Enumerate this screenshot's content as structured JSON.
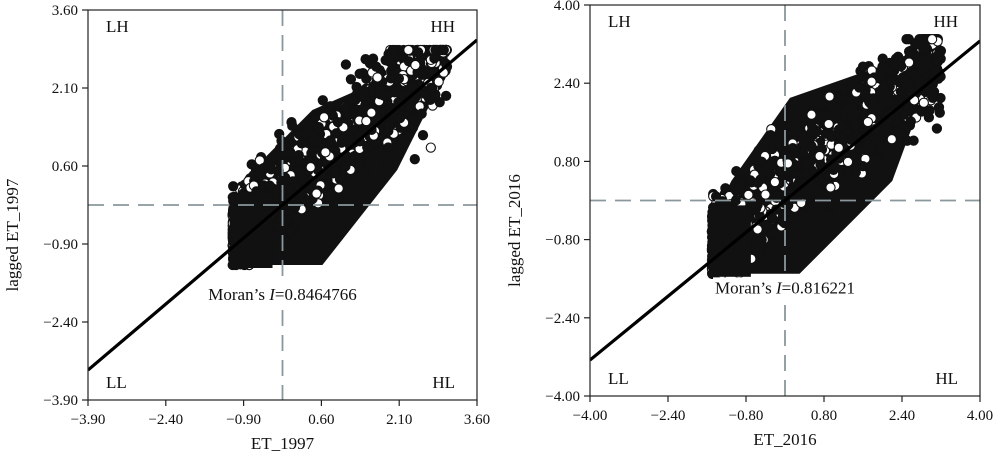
{
  "colors": {
    "points": "#111111",
    "guides": "#8a979c",
    "axes": "#222222",
    "fit": "#000000"
  },
  "chart_data": [
    {
      "type": "scatter",
      "xlabel": "ET_1997",
      "ylabel": "lagged ET_1997",
      "xlim": [
        -3.9,
        3.9
      ],
      "ylim": [
        -3.9,
        3.9
      ],
      "xticks": [
        "−3.90",
        "−2.40",
        "−0.90",
        "0.60",
        "2.10",
        "3.60"
      ],
      "yticks": [
        "−3.90",
        "−2.40",
        "−0.90",
        "0.60",
        "2.10",
        "3.60"
      ],
      "quadrants": {
        "top_left": "LH",
        "top_right": "HH",
        "bottom_left": "LL",
        "bottom_right": "HL"
      },
      "annotation": {
        "prefix": "Moran’s ",
        "italic": "I",
        "suffix": "=0.8464766"
      },
      "moran_i": 0.8464766,
      "fit_line": {
        "slope": 0.8464766,
        "intercept": 0
      },
      "guides": {
        "x": 0,
        "y": 0
      },
      "cloud": {
        "x_min": -1.0,
        "x_max": 3.3,
        "y_min": -1.2,
        "y_max": 3.1
      }
    },
    {
      "type": "scatter",
      "xlabel": "ET_2016",
      "ylabel": "lagged ET_2016",
      "xlim": [
        -4.0,
        4.0
      ],
      "ylim": [
        -4.0,
        4.0
      ],
      "xticks": [
        "−4.00",
        "−2.40",
        "−0.80",
        "0.80",
        "2.40",
        "4.00"
      ],
      "yticks": [
        "−4.00",
        "−2.40",
        "−0.80",
        "0.80",
        "2.40",
        "4.00"
      ],
      "quadrants": {
        "top_left": "LH",
        "top_right": "HH",
        "bottom_left": "LL",
        "bottom_right": "HL"
      },
      "annotation": {
        "prefix": "Moran’s ",
        "italic": "I",
        "suffix": "=0.816221"
      },
      "moran_i": 0.816221,
      "fit_line": {
        "slope": 0.816221,
        "intercept": 0
      },
      "guides": {
        "x": 0,
        "y": 0
      },
      "cloud": {
        "x_min": -1.5,
        "x_max": 3.2,
        "y_min": -1.5,
        "y_max": 3.3
      }
    }
  ]
}
